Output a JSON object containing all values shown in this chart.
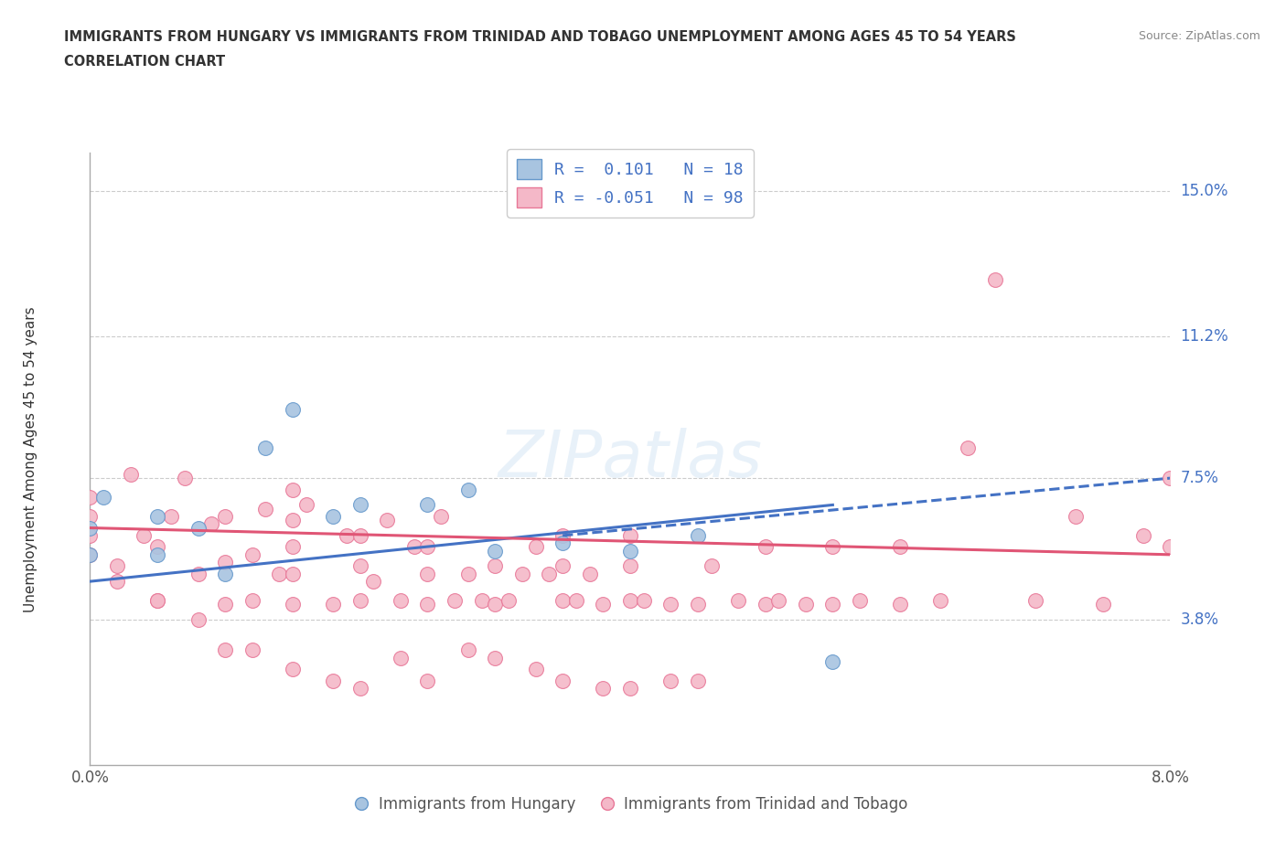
{
  "title_line1": "IMMIGRANTS FROM HUNGARY VS IMMIGRANTS FROM TRINIDAD AND TOBAGO UNEMPLOYMENT AMONG AGES 45 TO 54 YEARS",
  "title_line2": "CORRELATION CHART",
  "source": "Source: ZipAtlas.com",
  "ylabel": "Unemployment Among Ages 45 to 54 years",
  "xmin": 0.0,
  "xmax": 0.08,
  "ymin": 0.0,
  "ymax": 0.16,
  "yticks": [
    0.038,
    0.075,
    0.112,
    0.15
  ],
  "ytick_labels": [
    "3.8%",
    "7.5%",
    "11.2%",
    "15.0%"
  ],
  "xticks": [
    0.0,
    0.02,
    0.04,
    0.06,
    0.08
  ],
  "xtick_labels": [
    "0.0%",
    "",
    "",
    "",
    "8.0%"
  ],
  "watermark": "ZIPatlas",
  "hungary_color": "#a8c4e0",
  "hungary_edge_color": "#6699cc",
  "tt_color": "#f4b8c8",
  "tt_edge_color": "#e87898",
  "hungary_R": 0.101,
  "hungary_N": 18,
  "tt_R": -0.051,
  "tt_N": 98,
  "hungary_line_color": "#4472c4",
  "tt_line_color": "#e05575",
  "grid_color": "#cccccc",
  "legend_hungary_label": "Immigrants from Hungary",
  "legend_tt_label": "Immigrants from Trinidad and Tobago",
  "hungary_x": [
    0.0,
    0.0,
    0.001,
    0.005,
    0.005,
    0.008,
    0.01,
    0.013,
    0.015,
    0.018,
    0.02,
    0.025,
    0.028,
    0.03,
    0.035,
    0.04,
    0.045,
    0.055
  ],
  "hungary_y": [
    0.055,
    0.062,
    0.07,
    0.055,
    0.065,
    0.062,
    0.05,
    0.083,
    0.093,
    0.065,
    0.068,
    0.068,
    0.072,
    0.056,
    0.058,
    0.056,
    0.06,
    0.027
  ],
  "tt_x": [
    0.0,
    0.0,
    0.0,
    0.0,
    0.002,
    0.003,
    0.004,
    0.005,
    0.005,
    0.006,
    0.007,
    0.008,
    0.009,
    0.01,
    0.01,
    0.01,
    0.012,
    0.012,
    0.013,
    0.014,
    0.015,
    0.015,
    0.015,
    0.015,
    0.015,
    0.016,
    0.018,
    0.019,
    0.02,
    0.02,
    0.02,
    0.021,
    0.022,
    0.023,
    0.024,
    0.025,
    0.025,
    0.025,
    0.026,
    0.027,
    0.028,
    0.029,
    0.03,
    0.03,
    0.031,
    0.032,
    0.033,
    0.034,
    0.035,
    0.035,
    0.035,
    0.036,
    0.037,
    0.038,
    0.04,
    0.04,
    0.04,
    0.041,
    0.043,
    0.045,
    0.046,
    0.048,
    0.05,
    0.05,
    0.051,
    0.053,
    0.055,
    0.055,
    0.057,
    0.06,
    0.06,
    0.063,
    0.065,
    0.067,
    0.07,
    0.073,
    0.075,
    0.078,
    0.08,
    0.08,
    0.002,
    0.005,
    0.008,
    0.01,
    0.012,
    0.015,
    0.018,
    0.02,
    0.023,
    0.025,
    0.028,
    0.03,
    0.033,
    0.035,
    0.038,
    0.04,
    0.043,
    0.045
  ],
  "tt_y": [
    0.055,
    0.06,
    0.065,
    0.07,
    0.048,
    0.076,
    0.06,
    0.043,
    0.057,
    0.065,
    0.075,
    0.05,
    0.063,
    0.042,
    0.053,
    0.065,
    0.043,
    0.055,
    0.067,
    0.05,
    0.042,
    0.05,
    0.057,
    0.064,
    0.072,
    0.068,
    0.042,
    0.06,
    0.043,
    0.052,
    0.06,
    0.048,
    0.064,
    0.043,
    0.057,
    0.042,
    0.05,
    0.057,
    0.065,
    0.043,
    0.05,
    0.043,
    0.042,
    0.052,
    0.043,
    0.05,
    0.057,
    0.05,
    0.043,
    0.052,
    0.06,
    0.043,
    0.05,
    0.042,
    0.043,
    0.052,
    0.06,
    0.043,
    0.042,
    0.042,
    0.052,
    0.043,
    0.042,
    0.057,
    0.043,
    0.042,
    0.042,
    0.057,
    0.043,
    0.042,
    0.057,
    0.043,
    0.083,
    0.127,
    0.043,
    0.065,
    0.042,
    0.06,
    0.057,
    0.075,
    0.052,
    0.043,
    0.038,
    0.03,
    0.03,
    0.025,
    0.022,
    0.02,
    0.028,
    0.022,
    0.03,
    0.028,
    0.025,
    0.022,
    0.02,
    0.02,
    0.022,
    0.022
  ]
}
